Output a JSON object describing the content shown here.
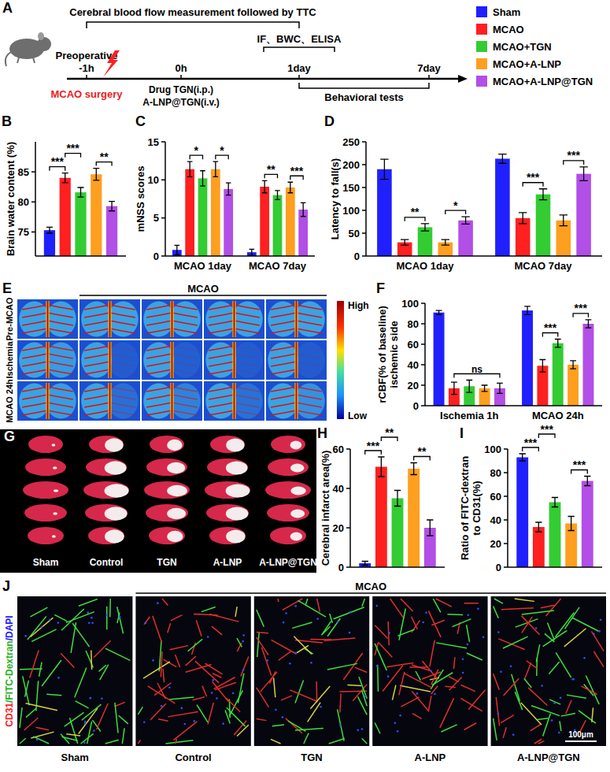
{
  "figure_legend": [
    {
      "name": "Sham",
      "color": "#2020ff"
    },
    {
      "name": "MCAO",
      "color": "#ff2020"
    },
    {
      "name": "MCAO+TGN",
      "color": "#33cc33"
    },
    {
      "name": "MCAO+A-LNP",
      "color": "#ff9f1f"
    },
    {
      "name": "MCAO+A-LNP@TGN",
      "color": "#b24fe6"
    }
  ],
  "timeline": {
    "panel": "A",
    "span_label": "Cerebral blood flow measurement followed by TTC",
    "assay_label": "IF、BWC、ELISA",
    "preoperative": "Preoperative",
    "times": [
      "-1h",
      "0h",
      "1day",
      "7day"
    ],
    "surgery": "MCAO surgery",
    "drug": [
      "Drug TGN(i.p.)",
      "A-LNP@TGN(i.v.)"
    ],
    "behavior": "Behavioral tests"
  },
  "chart_data": [
    {
      "panel": "B",
      "type": "bar",
      "y_label": "Brain water content (%)",
      "categories": [
        null
      ],
      "series": [
        {
          "color": "#2020ff",
          "values": [
            75.3
          ],
          "errors": [
            0.5
          ]
        },
        {
          "color": "#ff2020",
          "values": [
            84.0
          ],
          "errors": [
            0.8
          ]
        },
        {
          "color": "#33cc33",
          "values": [
            81.6
          ],
          "errors": [
            0.8
          ]
        },
        {
          "color": "#ff9f1f",
          "values": [
            84.6
          ],
          "errors": [
            1.0
          ]
        },
        {
          "color": "#b24fe6",
          "values": [
            79.3
          ],
          "errors": [
            0.8
          ]
        }
      ],
      "ylim": [
        71,
        90
      ],
      "yticks": [
        75,
        80,
        85
      ],
      "annotations": [
        {
          "text": "***",
          "category": 0,
          "between": [
            0,
            1
          ]
        },
        {
          "text": "***",
          "category": 0,
          "between": [
            1,
            2
          ]
        },
        {
          "text": "**",
          "category": 0,
          "between": [
            3,
            4
          ]
        }
      ]
    },
    {
      "panel": "C",
      "type": "bar",
      "y_label": "mNSS scores",
      "categories": [
        "MCAO 1day",
        "MCAO 7day"
      ],
      "series": [
        {
          "color": "#2020ff",
          "values": [
            0.8,
            0.5
          ],
          "errors": [
            0.6,
            0.4
          ]
        },
        {
          "color": "#ff2020",
          "values": [
            11.4,
            9.1
          ],
          "errors": [
            1.0,
            0.8
          ]
        },
        {
          "color": "#33cc33",
          "values": [
            10.2,
            8.0
          ],
          "errors": [
            1.0,
            0.6
          ]
        },
        {
          "color": "#ff9f1f",
          "values": [
            11.4,
            9.0
          ],
          "errors": [
            1.0,
            0.7
          ]
        },
        {
          "color": "#b24fe6",
          "values": [
            8.8,
            6.1
          ],
          "errors": [
            0.8,
            0.9
          ]
        }
      ],
      "ylim": [
        0,
        15
      ],
      "yticks": [
        0,
        5,
        10,
        15
      ],
      "annotations": [
        {
          "text": "*",
          "category": 0,
          "between": [
            1,
            2
          ]
        },
        {
          "text": "*",
          "category": 0,
          "between": [
            3,
            4
          ]
        },
        {
          "text": "**",
          "category": 1,
          "between": [
            1,
            2
          ]
        },
        {
          "text": "***",
          "category": 1,
          "between": [
            3,
            4
          ]
        }
      ]
    },
    {
      "panel": "D",
      "type": "bar",
      "y_label": "Latency to fall(s)",
      "categories": [
        "MCAO 1day",
        "MCAO 7day"
      ],
      "series": [
        {
          "color": "#2020ff",
          "values": [
            190,
            213
          ],
          "errors": [
            22,
            10
          ]
        },
        {
          "color": "#ff2020",
          "values": [
            30,
            83
          ],
          "errors": [
            6,
            12
          ]
        },
        {
          "color": "#33cc33",
          "values": [
            63,
            135
          ],
          "errors": [
            8,
            12
          ]
        },
        {
          "color": "#ff9f1f",
          "values": [
            30,
            78
          ],
          "errors": [
            6,
            12
          ]
        },
        {
          "color": "#b24fe6",
          "values": [
            78,
            180
          ],
          "errors": [
            8,
            15
          ]
        }
      ],
      "ylim": [
        0,
        250
      ],
      "yticks": [
        0,
        50,
        100,
        150,
        200,
        250
      ],
      "annotations": [
        {
          "text": "**",
          "category": 0,
          "between": [
            1,
            2
          ]
        },
        {
          "text": "*",
          "category": 0,
          "between": [
            3,
            4
          ]
        },
        {
          "text": "***",
          "category": 1,
          "between": [
            1,
            2
          ]
        },
        {
          "text": "***",
          "category": 1,
          "between": [
            3,
            4
          ]
        }
      ]
    },
    {
      "panel": "F",
      "type": "bar",
      "y_label": [
        "rCBF(% of baseline)",
        "ischemic side"
      ],
      "categories": [
        "Ischemia 1h",
        "MCAO 24h"
      ],
      "series": [
        {
          "color": "#2020ff",
          "values": [
            91,
            93
          ],
          "errors": [
            2,
            4
          ]
        },
        {
          "color": "#ff2020",
          "values": [
            17,
            39
          ],
          "errors": [
            6,
            6
          ]
        },
        {
          "color": "#33cc33",
          "values": [
            19,
            61
          ],
          "errors": [
            6,
            4
          ]
        },
        {
          "color": "#ff9f1f",
          "values": [
            17,
            40
          ],
          "errors": [
            3,
            4
          ]
        },
        {
          "color": "#b24fe6",
          "values": [
            17,
            80
          ],
          "errors": [
            5,
            4
          ]
        }
      ],
      "ylim": [
        0,
        100
      ],
      "yticks": [
        0,
        20,
        40,
        60,
        80,
        100
      ],
      "annotations": [
        {
          "text": "ns",
          "category": 0,
          "between": [
            1,
            4
          ]
        },
        {
          "text": "***",
          "category": 1,
          "between": [
            1,
            2
          ]
        },
        {
          "text": "***",
          "category": 1,
          "between": [
            3,
            4
          ]
        }
      ]
    },
    {
      "panel": "H",
      "type": "bar",
      "y_label": "Cerebral infarct area(%)",
      "categories": [
        null
      ],
      "series": [
        {
          "color": "#2020ff",
          "values": [
            2
          ],
          "errors": [
            1
          ]
        },
        {
          "color": "#ff2020",
          "values": [
            51
          ],
          "errors": [
            5
          ]
        },
        {
          "color": "#33cc33",
          "values": [
            35
          ],
          "errors": [
            4
          ]
        },
        {
          "color": "#ff9f1f",
          "values": [
            50
          ],
          "errors": [
            3
          ]
        },
        {
          "color": "#b24fe6",
          "values": [
            20
          ],
          "errors": [
            4
          ]
        }
      ],
      "ylim": [
        0,
        60
      ],
      "yticks": [
        0,
        20,
        40,
        60
      ],
      "annotations": [
        {
          "text": "***",
          "category": 0,
          "between": [
            0,
            1
          ]
        },
        {
          "text": "**",
          "category": 0,
          "between": [
            1,
            2
          ]
        },
        {
          "text": "**",
          "category": 0,
          "between": [
            3,
            4
          ]
        }
      ]
    },
    {
      "panel": "I",
      "type": "bar",
      "y_label": [
        "Ratio of FITC-dextran",
        "to CD31(%)"
      ],
      "categories": [
        null
      ],
      "series": [
        {
          "color": "#2020ff",
          "values": [
            93
          ],
          "errors": [
            3
          ]
        },
        {
          "color": "#ff2020",
          "values": [
            34
          ],
          "errors": [
            4
          ]
        },
        {
          "color": "#33cc33",
          "values": [
            55
          ],
          "errors": [
            4
          ]
        },
        {
          "color": "#ff9f1f",
          "values": [
            37
          ],
          "errors": [
            6
          ]
        },
        {
          "color": "#b24fe6",
          "values": [
            73
          ],
          "errors": [
            4
          ]
        }
      ],
      "ylim": [
        0,
        100
      ],
      "yticks": [
        0,
        20,
        40,
        60,
        80,
        100
      ],
      "annotations": [
        {
          "text": "***",
          "category": 0,
          "between": [
            0,
            1
          ]
        },
        {
          "text": "***",
          "category": 0,
          "between": [
            1,
            2
          ]
        },
        {
          "text": "***",
          "category": 0,
          "between": [
            3,
            4
          ]
        }
      ]
    }
  ],
  "images": {
    "E": {
      "panel": "E",
      "group_label": "MCAO",
      "row_labels": [
        "Pre-MCAO",
        "Ischemia",
        "MCAO 24h"
      ],
      "colorbar": {
        "high": "High",
        "low": "Low"
      }
    },
    "G": {
      "panel": "G",
      "column_labels": [
        "Sham",
        "Control",
        "TGN",
        "A-LNP",
        "A-LNP@TGN"
      ]
    },
    "J": {
      "panel": "J",
      "group_label": "MCAO",
      "stain_label": [
        {
          "text": "CD31",
          "color": "#ff2020"
        },
        {
          "text": "/FITC-Dextran",
          "color": "#1fb01f"
        },
        {
          "text": "/DAPI",
          "color": "#2020ff"
        }
      ],
      "column_labels": [
        "Sham",
        "Control",
        "TGN",
        "A-LNP",
        "A-LNP@TGN"
      ],
      "scale_bar": "100μm"
    }
  }
}
